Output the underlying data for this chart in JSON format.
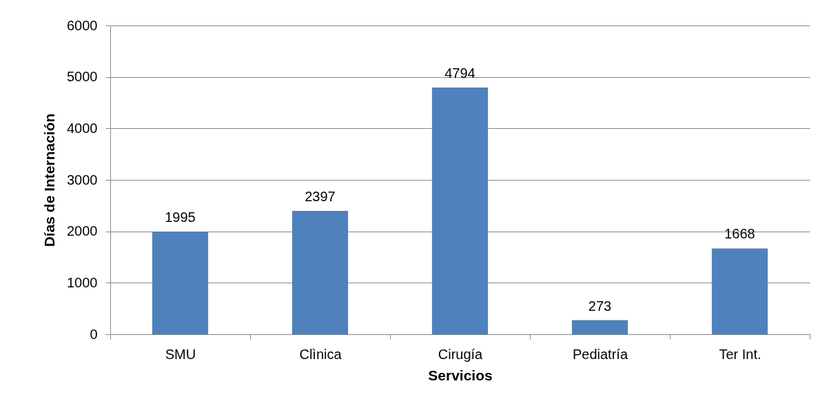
{
  "chart_data": {
    "type": "bar",
    "xlabel": "Servicios",
    "ylabel": "Días de Internación",
    "categories": [
      "SMU",
      "Clìnica",
      "Cirugía",
      "Pediatría",
      "Ter Int."
    ],
    "values": [
      1995,
      2397,
      4794,
      273,
      1668
    ],
    "color": "#4f81bd",
    "ylim": [
      0,
      6000
    ],
    "yticks": [
      0,
      1000,
      2000,
      3000,
      4000,
      5000,
      6000
    ],
    "grid": "y",
    "data_labels": true
  }
}
